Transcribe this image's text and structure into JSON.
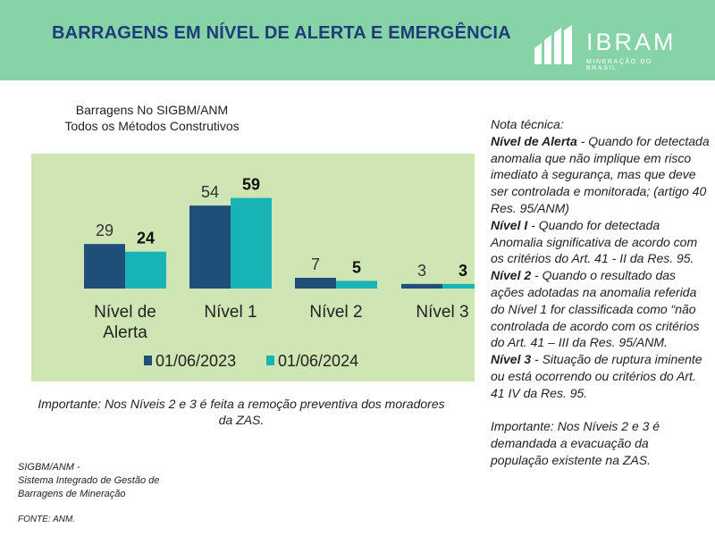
{
  "header": {
    "title": "BARRAGENS EM NÍVEL DE ALERTA E EMERGÊNCIA",
    "logo_text": "IBRAM",
    "logo_subtitle": "MINERAÇÃO DO BRASIL"
  },
  "chart_heading": {
    "line1": "Barragens No SIGBM/ANM",
    "line2": "Todos os Métodos Construtivos"
  },
  "chart_data": {
    "type": "bar",
    "categories": [
      "Nível de Alerta",
      "Nível 1",
      "Nível 2",
      "Nível 3"
    ],
    "series": [
      {
        "name": "01/06/2023",
        "values": [
          29,
          54,
          7,
          3
        ],
        "color": "#1f4e79"
      },
      {
        "name": "01/06/2024",
        "values": [
          24,
          59,
          5,
          3
        ],
        "color": "#17b3b5"
      }
    ],
    "title": "",
    "xlabel": "",
    "ylabel": "",
    "ylim": [
      0,
      70
    ],
    "grid": false,
    "legend": "bottom"
  },
  "importante_chart": "Importante: Nos Níveis 2 e 3 é feita a remoção preventiva dos moradores da ZAS.",
  "footnote": {
    "line1": "SIGBM/ANM -",
    "line2": "Sistema Integrado de Gestão de",
    "line3": "Barragens de Mineração"
  },
  "fonte": "FONTE: ANM.",
  "nota": {
    "heading": "Nota técnica:",
    "alerta_label": "Nível de Alerta",
    "alerta_text": " - Quando for detectada anomalia que não implique em risco imediato à segurança, mas que deve ser controlada e monitorada; (artigo 40 Res. 95/ANM)",
    "n1_label": "Nível I",
    "n1_text": " - Quando for detectada Anomalia significativa de acordo com os critérios do Art. 41 - II da Res. 95.",
    "n2_label": "Nível 2",
    "n2_text": "  - Quando o resultado das ações adotadas na anomalia referida do Nível 1 for classificada como “não controlada de acordo com os critérios do Art. 41 – III da Res. 95/ANM.",
    "n3_label": "Nível 3",
    "n3_text": " - Situação de ruptura iminente ou está ocorrendo ou critérios do Art. 41 IV da Res. 95.",
    "importante": "Importante: Nos Níveis 2 e 3 é demandada a evacuação da população existente na ZAS."
  },
  "colors": {
    "header_bg": "#86d3a8",
    "header_title": "#1f3b7a",
    "chart_bg": "#cfe5b3"
  }
}
